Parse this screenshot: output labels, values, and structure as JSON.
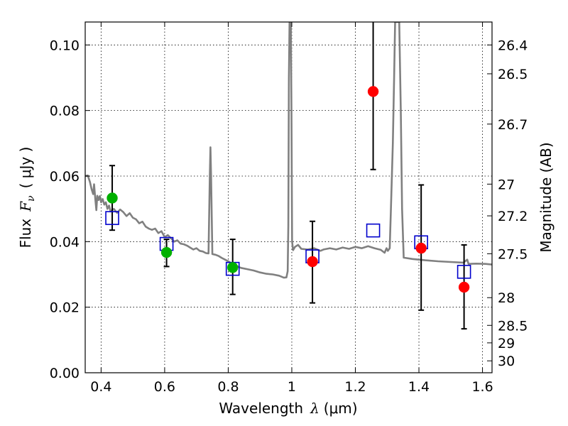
{
  "chart_data": {
    "type": "scatter",
    "xlabel_text": "Wavelength",
    "xlabel_symbol": "λ",
    "xlabel_unit": "(μm)",
    "ylabel_text": "Flux",
    "ylabel_symbol": "F",
    "ylabel_subscript": "ν",
    "ylabel_unit": "( μJy )",
    "y2label": "Magnitude (AB)",
    "xlim": [
      0.35,
      1.63
    ],
    "ylim": [
      0.0,
      0.107
    ],
    "grid": true,
    "x_ticks": [
      0.4,
      0.6,
      0.8,
      1.0,
      1.2,
      1.4,
      1.6
    ],
    "x_tick_labels": [
      "0.4",
      "0.6",
      "0.8",
      "1",
      "1.2",
      "1.4",
      "1.6"
    ],
    "y_ticks": [
      0.0,
      0.02,
      0.04,
      0.06,
      0.08,
      0.1
    ],
    "y_tick_labels": [
      "0.00",
      "0.02",
      "0.04",
      "0.06",
      "0.08",
      "0.10"
    ],
    "mag_ticks": [
      26.4,
      26.5,
      26.7,
      27,
      27.2,
      27.5,
      28,
      28.5,
      29,
      30
    ],
    "mag_tick_labels": [
      "26.4",
      "26.5",
      "26.7",
      "27",
      "27.2",
      "27.5",
      "28",
      "28.5",
      "29",
      "30"
    ],
    "colors": {
      "model": "#808080",
      "green": "#00b000",
      "red": "#ff0000",
      "blue": "#0000cc",
      "errorbar": "#000000"
    },
    "series": [
      {
        "marker": "circle",
        "color": "green",
        "points": [
          {
            "x": 0.435,
            "y": 0.0533,
            "err_low": 0.0098,
            "err_high": 0.0099
          },
          {
            "x": 0.606,
            "y": 0.0367,
            "err_low": 0.0043,
            "err_high": 0.004
          },
          {
            "x": 0.814,
            "y": 0.0321,
            "err_low": 0.0082,
            "err_high": 0.0086
          }
        ]
      },
      {
        "marker": "circle",
        "color": "red",
        "points": [
          {
            "x": 1.065,
            "y": 0.0339,
            "err_low": 0.0126,
            "err_high": 0.0123
          },
          {
            "x": 1.256,
            "y": 0.0858,
            "err_low": 0.0238,
            "err_high": 0.0262
          },
          {
            "x": 1.407,
            "y": 0.038,
            "err_low": 0.0189,
            "err_high": 0.0193
          },
          {
            "x": 1.542,
            "y": 0.0261,
            "err_low": 0.0127,
            "err_high": 0.0129
          }
        ]
      },
      {
        "marker": "open-square",
        "color": "blue",
        "points": [
          {
            "x": 0.435,
            "y": 0.0472
          },
          {
            "x": 0.606,
            "y": 0.0393
          },
          {
            "x": 0.814,
            "y": 0.0317
          },
          {
            "x": 1.065,
            "y": 0.0355
          },
          {
            "x": 1.256,
            "y": 0.0434
          },
          {
            "x": 1.407,
            "y": 0.0398
          },
          {
            "x": 1.542,
            "y": 0.0308
          }
        ]
      },
      {
        "marker": "line",
        "color": "model",
        "points": [
          [
            0.35,
            0.06
          ],
          [
            0.358,
            0.0602
          ],
          [
            0.365,
            0.0582
          ],
          [
            0.37,
            0.056
          ],
          [
            0.375,
            0.0545
          ],
          [
            0.378,
            0.0575
          ],
          [
            0.382,
            0.0528
          ],
          [
            0.385,
            0.0496
          ],
          [
            0.388,
            0.054
          ],
          [
            0.392,
            0.0527
          ],
          [
            0.396,
            0.0539
          ],
          [
            0.4,
            0.052
          ],
          [
            0.405,
            0.053
          ],
          [
            0.41,
            0.0513
          ],
          [
            0.415,
            0.052
          ],
          [
            0.42,
            0.05
          ],
          [
            0.425,
            0.051
          ],
          [
            0.43,
            0.0492
          ],
          [
            0.44,
            0.05
          ],
          [
            0.45,
            0.0488
          ],
          [
            0.46,
            0.0498
          ],
          [
            0.47,
            0.049
          ],
          [
            0.48,
            0.0478
          ],
          [
            0.49,
            0.0487
          ],
          [
            0.5,
            0.0473
          ],
          [
            0.51,
            0.0468
          ],
          [
            0.52,
            0.0456
          ],
          [
            0.53,
            0.0461
          ],
          [
            0.54,
            0.0446
          ],
          [
            0.55,
            0.044
          ],
          [
            0.56,
            0.0436
          ],
          [
            0.57,
            0.044
          ],
          [
            0.58,
            0.0426
          ],
          [
            0.59,
            0.0432
          ],
          [
            0.6,
            0.0414
          ],
          [
            0.61,
            0.042
          ],
          [
            0.62,
            0.041
          ],
          [
            0.63,
            0.04
          ],
          [
            0.64,
            0.0404
          ],
          [
            0.65,
            0.0394
          ],
          [
            0.66,
            0.0392
          ],
          [
            0.67,
            0.0388
          ],
          [
            0.68,
            0.0382
          ],
          [
            0.69,
            0.0376
          ],
          [
            0.7,
            0.038
          ],
          [
            0.71,
            0.0372
          ],
          [
            0.72,
            0.037
          ],
          [
            0.73,
            0.0365
          ],
          [
            0.738,
            0.0364
          ],
          [
            0.742,
            0.06
          ],
          [
            0.744,
            0.0688
          ],
          [
            0.746,
            0.06
          ],
          [
            0.75,
            0.0362
          ],
          [
            0.76,
            0.036
          ],
          [
            0.77,
            0.0356
          ],
          [
            0.78,
            0.035
          ],
          [
            0.79,
            0.0345
          ],
          [
            0.8,
            0.034
          ],
          [
            0.82,
            0.0328
          ],
          [
            0.84,
            0.032
          ],
          [
            0.86,
            0.0316
          ],
          [
            0.88,
            0.0312
          ],
          [
            0.9,
            0.0306
          ],
          [
            0.92,
            0.0302
          ],
          [
            0.94,
            0.03
          ],
          [
            0.96,
            0.0296
          ],
          [
            0.975,
            0.029
          ],
          [
            0.983,
            0.0291
          ],
          [
            0.987,
            0.031
          ],
          [
            0.989,
            0.045
          ],
          [
            0.991,
            0.09
          ],
          [
            0.993,
            0.107
          ],
          [
            0.997,
            0.107
          ],
          [
            0.999,
            0.08
          ],
          [
            1.001,
            0.04
          ],
          [
            1.004,
            0.0374
          ],
          [
            1.01,
            0.0384
          ],
          [
            1.02,
            0.039
          ],
          [
            1.03,
            0.0378
          ],
          [
            1.05,
            0.0376
          ],
          [
            1.07,
            0.038
          ],
          [
            1.09,
            0.0372
          ],
          [
            1.1,
            0.0376
          ],
          [
            1.12,
            0.038
          ],
          [
            1.14,
            0.0376
          ],
          [
            1.16,
            0.0382
          ],
          [
            1.18,
            0.0378
          ],
          [
            1.2,
            0.0384
          ],
          [
            1.22,
            0.038
          ],
          [
            1.24,
            0.0386
          ],
          [
            1.26,
            0.038
          ],
          [
            1.28,
            0.0375
          ],
          [
            1.292,
            0.0366
          ],
          [
            1.298,
            0.038
          ],
          [
            1.302,
            0.0372
          ],
          [
            1.308,
            0.038
          ],
          [
            1.312,
            0.05
          ],
          [
            1.318,
            0.07
          ],
          [
            1.322,
            0.09
          ],
          [
            1.325,
            0.107
          ],
          [
            1.338,
            0.107
          ],
          [
            1.343,
            0.08
          ],
          [
            1.347,
            0.05
          ],
          [
            1.352,
            0.0351
          ],
          [
            1.38,
            0.0347
          ],
          [
            1.42,
            0.0343
          ],
          [
            1.46,
            0.034
          ],
          [
            1.5,
            0.0338
          ],
          [
            1.54,
            0.0336
          ],
          [
            1.552,
            0.0345
          ],
          [
            1.556,
            0.0332
          ],
          [
            1.58,
            0.0333
          ],
          [
            1.61,
            0.0332
          ],
          [
            1.63,
            0.033
          ]
        ]
      }
    ]
  }
}
